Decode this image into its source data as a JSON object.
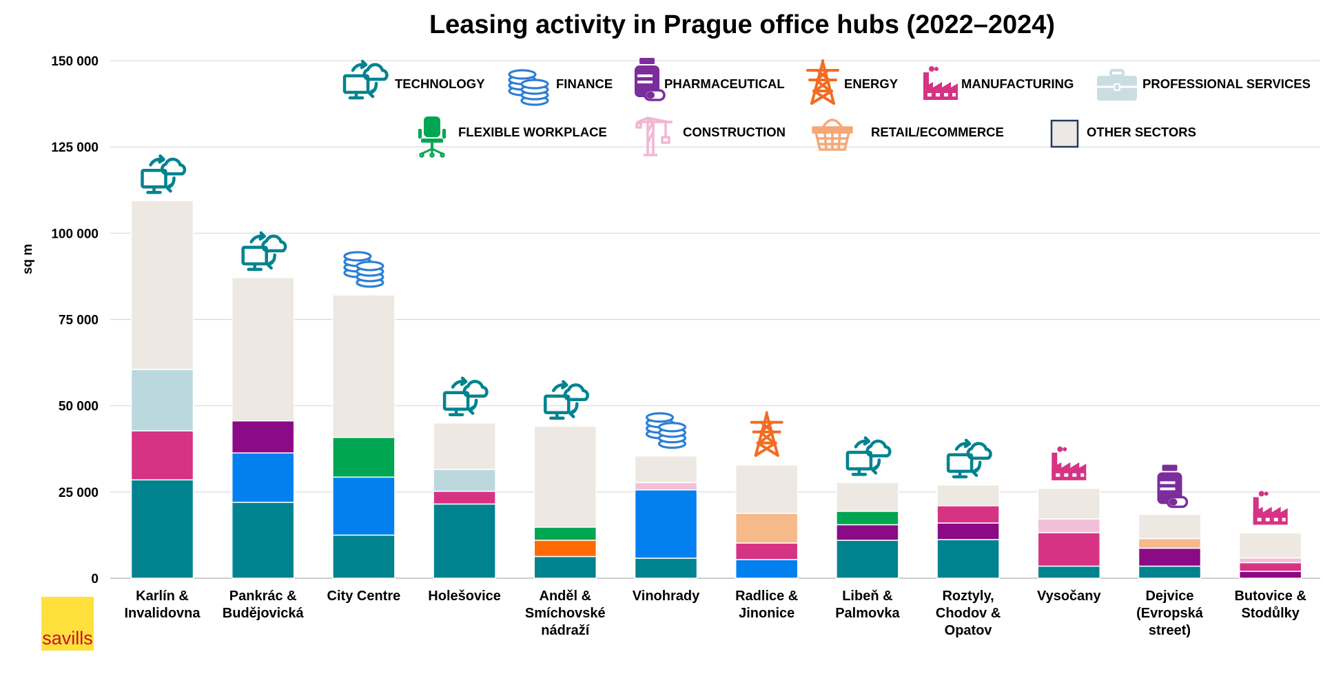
{
  "chart_data": {
    "type": "bar",
    "stacked": true,
    "title": "Leasing activity in Prague office hubs (2022–2024)",
    "ylabel": "sq m",
    "ylim": [
      0,
      150000
    ],
    "y_ticks": [
      0,
      25000,
      50000,
      75000,
      100000,
      125000,
      150000
    ],
    "y_tick_labels": [
      "0",
      "25 000",
      "50 000",
      "75 000",
      "100 000",
      "125 000",
      "150 000"
    ],
    "grid": true,
    "legend_position": "top",
    "categories": [
      [
        "Karlín &",
        "Invalidovna"
      ],
      [
        "Pankrác &",
        "Budějovická"
      ],
      [
        "City Centre"
      ],
      [
        "Holešovice"
      ],
      [
        "Anděl &",
        "Smíchovské",
        "nádraží"
      ],
      [
        "Vinohrady"
      ],
      [
        "Radlice &",
        "Jinonice"
      ],
      [
        "Libeň &",
        "Palmovka"
      ],
      [
        "Roztyly,",
        "Chodov &",
        "Opatov"
      ],
      [
        "Vysočany"
      ],
      [
        "Dejvice",
        "(Evropská",
        "street)"
      ],
      [
        "Butovice &",
        "Stodůlky"
      ]
    ],
    "series": [
      {
        "name": "TECHNOLOGY",
        "color": "#00838f",
        "icon": "monitor-cloud-icon",
        "values": [
          28500,
          22000,
          12500,
          21500,
          6300,
          5800,
          0,
          11000,
          11200,
          3500,
          3500,
          0
        ]
      },
      {
        "name": "FINANCE",
        "color": "#0280f0",
        "icon": "coins-icon",
        "values": [
          0,
          14300,
          16800,
          0,
          0,
          19800,
          5400,
          0,
          0,
          0,
          0,
          0
        ]
      },
      {
        "name": "PHARMACEUTICAL",
        "color": "#8b0a85",
        "icon": "pill-bottle-icon",
        "values": [
          0,
          9300,
          0,
          0,
          0,
          0,
          0,
          4500,
          4800,
          0,
          5200,
          2000
        ]
      },
      {
        "name": "ENERGY",
        "color": "#ff6a00",
        "icon": "pylon-icon",
        "values": [
          0,
          0,
          0,
          0,
          4700,
          0,
          0,
          0,
          0,
          0,
          0,
          0
        ]
      },
      {
        "name": "MANUFACTURING",
        "color": "#d63384",
        "icon": "factory-icon",
        "values": [
          14200,
          0,
          0,
          3700,
          0,
          0,
          4800,
          0,
          5000,
          9700,
          0,
          2500
        ]
      },
      {
        "name": "PROFESSIONAL SERVICES",
        "color": "#bcd8df",
        "icon": "briefcase-icon",
        "values": [
          17800,
          0,
          0,
          6300,
          0,
          0,
          0,
          0,
          0,
          0,
          0,
          0
        ]
      },
      {
        "name": "FLEXIBLE WORKPLACE",
        "color": "#00a651",
        "icon": "office-chair-icon",
        "values": [
          0,
          0,
          11500,
          0,
          3800,
          0,
          0,
          3900,
          0,
          0,
          0,
          0
        ]
      },
      {
        "name": "CONSTRUCTION",
        "color": "#f2c0d8",
        "icon": "crane-icon",
        "values": [
          0,
          0,
          0,
          0,
          0,
          2100,
          0,
          0,
          0,
          4000,
          0,
          1400
        ]
      },
      {
        "name": "RETAIL/ECOMMERCE",
        "color": "#f6b98a",
        "icon": "basket-icon",
        "values": [
          0,
          0,
          0,
          0,
          0,
          0,
          8600,
          0,
          0,
          0,
          2800,
          0
        ]
      },
      {
        "name": "OTHER SECTORS",
        "color": "#ede8e2",
        "icon": "square-icon",
        "values": [
          48900,
          41500,
          41300,
          13500,
          29200,
          7700,
          14000,
          8300,
          6000,
          8800,
          7000,
          7200
        ]
      }
    ],
    "top_sector_icons": [
      "monitor-cloud-icon",
      "monitor-cloud-icon",
      "coins-icon",
      "monitor-cloud-icon",
      "monitor-cloud-icon",
      "coins-icon",
      "pylon-icon",
      "monitor-cloud-icon",
      "monitor-cloud-icon",
      "factory-icon",
      "pill-bottle-icon",
      "factory-icon"
    ],
    "brand": {
      "name": "savills",
      "logo_bg": "#ffe03c",
      "logo_text_color": "#c8102e"
    }
  }
}
